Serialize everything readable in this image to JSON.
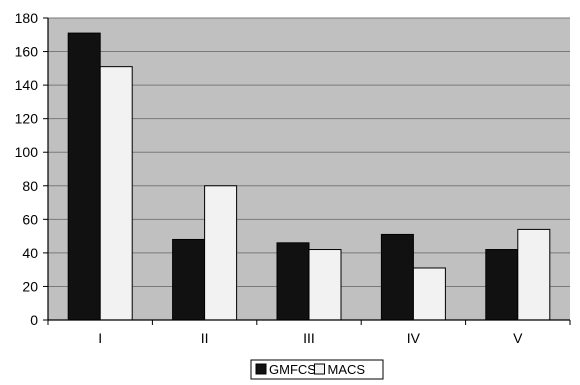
{
  "chart_data": {
    "type": "bar",
    "title": "",
    "xlabel": "",
    "ylabel": "",
    "categories": [
      "I",
      "II",
      "III",
      "IV",
      "V"
    ],
    "series": [
      {
        "name": "GMFCS",
        "values": [
          171,
          48,
          46,
          51,
          42
        ],
        "color": "#111111"
      },
      {
        "name": "MACS",
        "values": [
          151,
          80,
          42,
          31,
          54
        ],
        "color": "#f2f2f2"
      }
    ],
    "ylim": [
      0,
      180
    ],
    "yticks": [
      0,
      20,
      40,
      60,
      80,
      100,
      120,
      140,
      160,
      180
    ],
    "grid": true,
    "legend_position": "bottom",
    "colors": {
      "plot_background": "#c0c0c0",
      "gridline": "#7a7a7a",
      "axis": "#000000"
    }
  }
}
